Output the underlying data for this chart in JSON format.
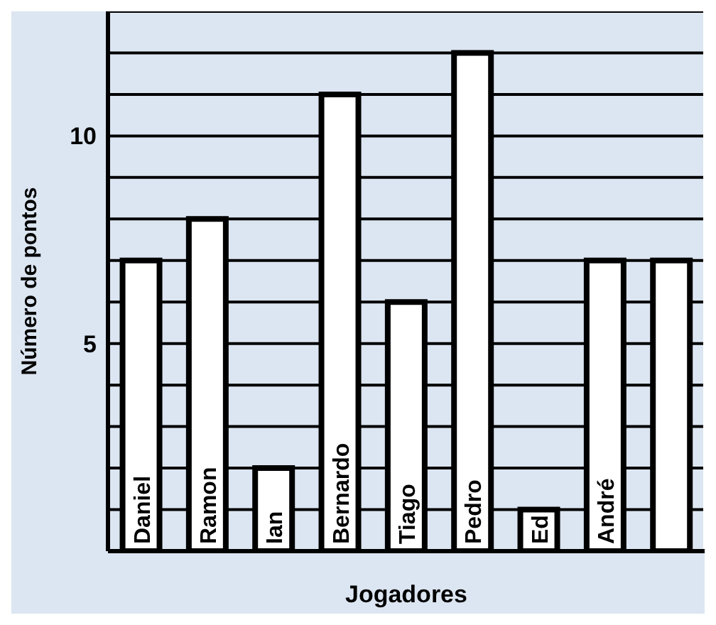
{
  "chart_data": {
    "type": "bar",
    "xlabel": "Jogadores",
    "ylabel": "Número de pontos",
    "categories": [
      "Daniel",
      "Ramon",
      "Ian",
      "Bernardo",
      "Tiago",
      "Pedro",
      "Ed",
      "André",
      null
    ],
    "values": [
      7,
      8,
      2,
      11,
      6,
      12,
      1,
      7,
      7
    ],
    "color": "#ffffff",
    "ylim": [
      0,
      13
    ],
    "yticks": [
      {
        "value": 0,
        "label": null
      },
      {
        "value": 1,
        "label": null
      },
      {
        "value": 2,
        "label": null
      },
      {
        "value": 3,
        "label": null
      },
      {
        "value": 4,
        "label": null
      },
      5,
      {
        "value": 6,
        "label": null
      },
      {
        "value": 7,
        "label": null
      },
      {
        "value": 8,
        "label": null
      },
      {
        "value": 9,
        "label": null
      },
      10,
      {
        "value": 11,
        "label": null
      },
      {
        "value": 12,
        "label": null
      },
      {
        "value": 13,
        "label": null
      }
    ],
    "grid": true,
    "tick_labels": "y"
  }
}
